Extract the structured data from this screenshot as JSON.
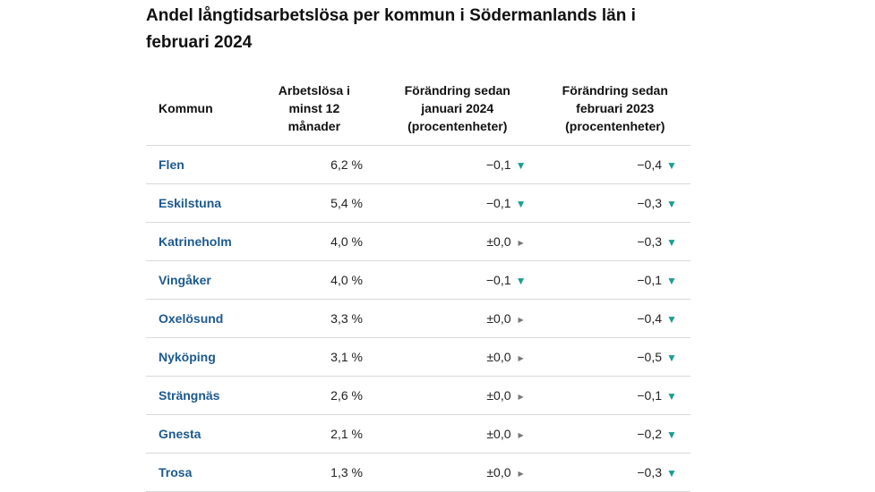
{
  "title": "Andel långtidsarbetslösa per kommun i Södermanlands län i februari 2024",
  "colors": {
    "name": "#1c5a8f",
    "down": "#1a9e8f",
    "flat": "#777777"
  },
  "headers": {
    "kommun": "Kommun",
    "unemployed": "Arbetslösa i minst 12 månader",
    "change_jan": "Förändring sedan januari 2024 (procentenheter)",
    "change_feb": "Förändring sedan februari 2023 (procentenheter)"
  },
  "rows": [
    {
      "name": "Flen",
      "share": "6,2 %",
      "jan": "−0,1",
      "jan_dir": "down",
      "feb": "−0,4",
      "feb_dir": "down"
    },
    {
      "name": "Eskilstuna",
      "share": "5,4 %",
      "jan": "−0,1",
      "jan_dir": "down",
      "feb": "−0,3",
      "feb_dir": "down"
    },
    {
      "name": "Katrineholm",
      "share": "4,0 %",
      "jan": "±0,0",
      "jan_dir": "flat",
      "feb": "−0,3",
      "feb_dir": "down"
    },
    {
      "name": "Vingåker",
      "share": "4,0 %",
      "jan": "−0,1",
      "jan_dir": "down",
      "feb": "−0,1",
      "feb_dir": "down"
    },
    {
      "name": "Oxelösund",
      "share": "3,3 %",
      "jan": "±0,0",
      "jan_dir": "flat",
      "feb": "−0,4",
      "feb_dir": "down"
    },
    {
      "name": "Nyköping",
      "share": "3,1 %",
      "jan": "±0,0",
      "jan_dir": "flat",
      "feb": "−0,5",
      "feb_dir": "down"
    },
    {
      "name": "Strängnäs",
      "share": "2,6 %",
      "jan": "±0,0",
      "jan_dir": "flat",
      "feb": "−0,1",
      "feb_dir": "down"
    },
    {
      "name": "Gnesta",
      "share": "2,1 %",
      "jan": "±0,0",
      "jan_dir": "flat",
      "feb": "−0,2",
      "feb_dir": "down"
    },
    {
      "name": "Trosa",
      "share": "1,3 %",
      "jan": "±0,0",
      "jan_dir": "flat",
      "feb": "−0,3",
      "feb_dir": "down"
    }
  ]
}
